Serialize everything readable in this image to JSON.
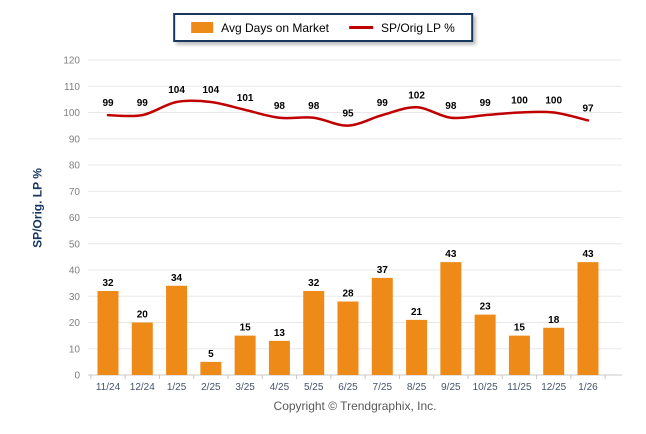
{
  "legend": {
    "bar_label": "Avg Days on Market",
    "line_label": "SP/Orig LP %"
  },
  "y_axis_title": "SP/Orig. LP %",
  "footer": {
    "copyright": "Copyright © Trendgraphix, Inc."
  },
  "colors": {
    "bar": "#ee8a18",
    "line": "#c00000",
    "grid": "#e8e8e8",
    "axis_line": "#c9c9c9",
    "tick_mark": "#c9c9c9",
    "x_label": "#44546a",
    "y_tick_label": "#7f7f7f",
    "data_label": "#000000",
    "legend_border": "#17375e",
    "axis_title": "#17375e",
    "copyright_text": "#595959"
  },
  "chart_data": {
    "type": "bar+line",
    "title": "",
    "xlabel": "",
    "ylabel": "SP/Orig. LP %",
    "ylim": [
      0,
      120
    ],
    "ytick_step": 10,
    "grid": true,
    "legend_position": "top-center",
    "categories": [
      "11/24",
      "12/24",
      "1/25",
      "2/25",
      "3/25",
      "4/25",
      "5/25",
      "6/25",
      "7/25",
      "8/25",
      "9/25",
      "10/25",
      "11/25",
      "12/25",
      "1/26"
    ],
    "series": [
      {
        "name": "Avg Days on Market",
        "type": "bar",
        "values": [
          32,
          20,
          34,
          5,
          15,
          13,
          32,
          28,
          37,
          21,
          43,
          23,
          15,
          18,
          43
        ]
      },
      {
        "name": "SP/Orig LP %",
        "type": "line",
        "values": [
          99,
          99,
          104,
          104,
          101,
          98,
          98,
          95,
          99,
          102,
          98,
          99,
          100,
          100,
          97
        ]
      }
    ]
  }
}
